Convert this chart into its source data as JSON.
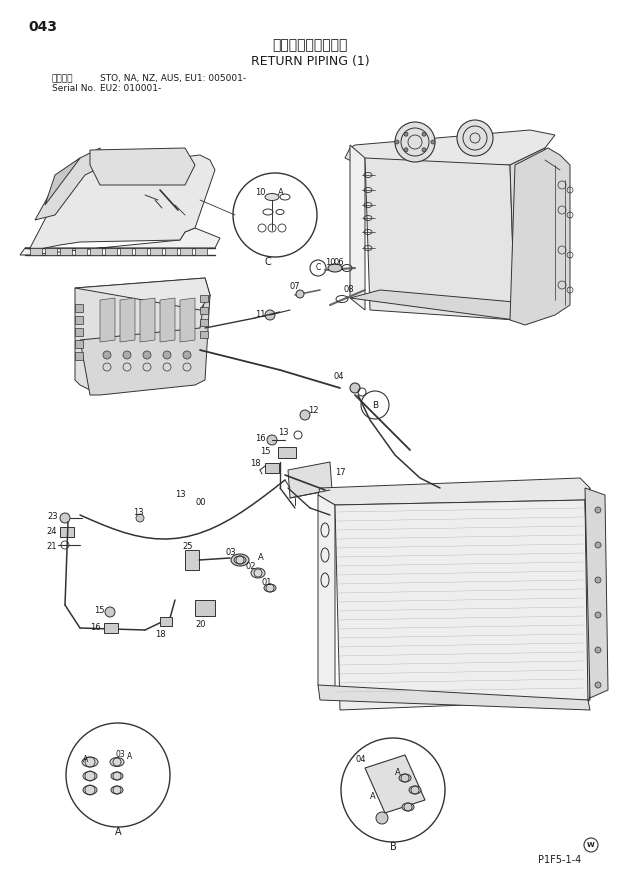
{
  "page_number": "043",
  "title_japanese": "リターン配管（１）",
  "title_english": "RETURN PIPING (1)",
  "serial_label1": "適用号機",
  "serial_label2": "Serial No.",
  "serial_info1": "STO, NA, NZ, AUS, EU1: 005001-",
  "serial_info2": "EU2: 010001-",
  "page_id": "P1F5-1-4",
  "bg_color": "#ffffff",
  "line_color": "#333333",
  "text_color": "#1a1a1a",
  "fig_width": 6.2,
  "fig_height": 8.73,
  "dpi": 100
}
